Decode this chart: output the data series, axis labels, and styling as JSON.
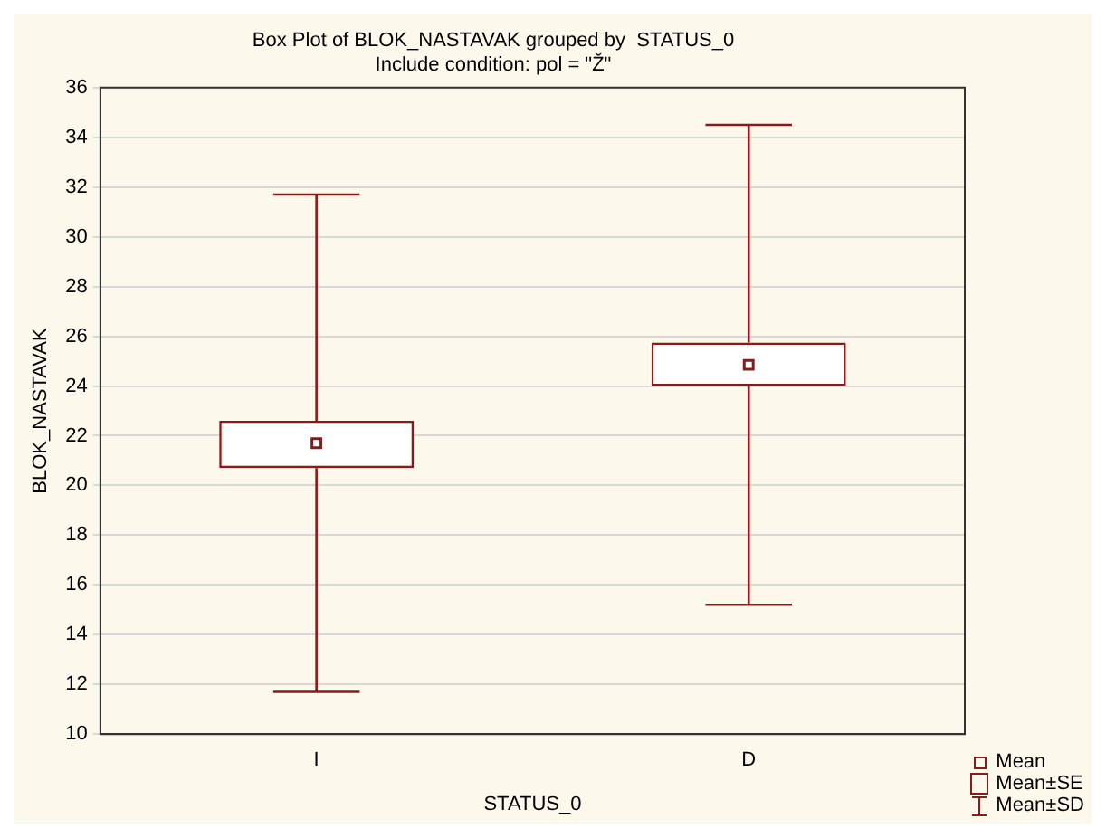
{
  "chart_data": {
    "type": "box",
    "title": "Box Plot of BLOK_NASTAVAK grouped by  STATUS_0",
    "subtitle": "Include condition: pol = \"Ž\"",
    "xlabel": "STATUS_0",
    "ylabel": "BLOK_NASTAVAK",
    "categories": [
      "I",
      "D"
    ],
    "color": "#8b1a1a",
    "boxes": [
      {
        "low": 11.7,
        "q1": 20.7,
        "q3": 22.6,
        "high": 31.7,
        "mean": 21.7
      },
      {
        "low": 15.2,
        "q1": 24.0,
        "q3": 25.75,
        "high": 34.5,
        "mean": 24.85
      }
    ],
    "ylim": [
      10,
      36
    ],
    "yticks": [
      10,
      12,
      14,
      16,
      18,
      20,
      22,
      24,
      26,
      28,
      30,
      32,
      34,
      36
    ],
    "grid": "y",
    "annotations": [
      "Mean",
      "Mean±SE",
      "Mean±SD"
    ]
  }
}
